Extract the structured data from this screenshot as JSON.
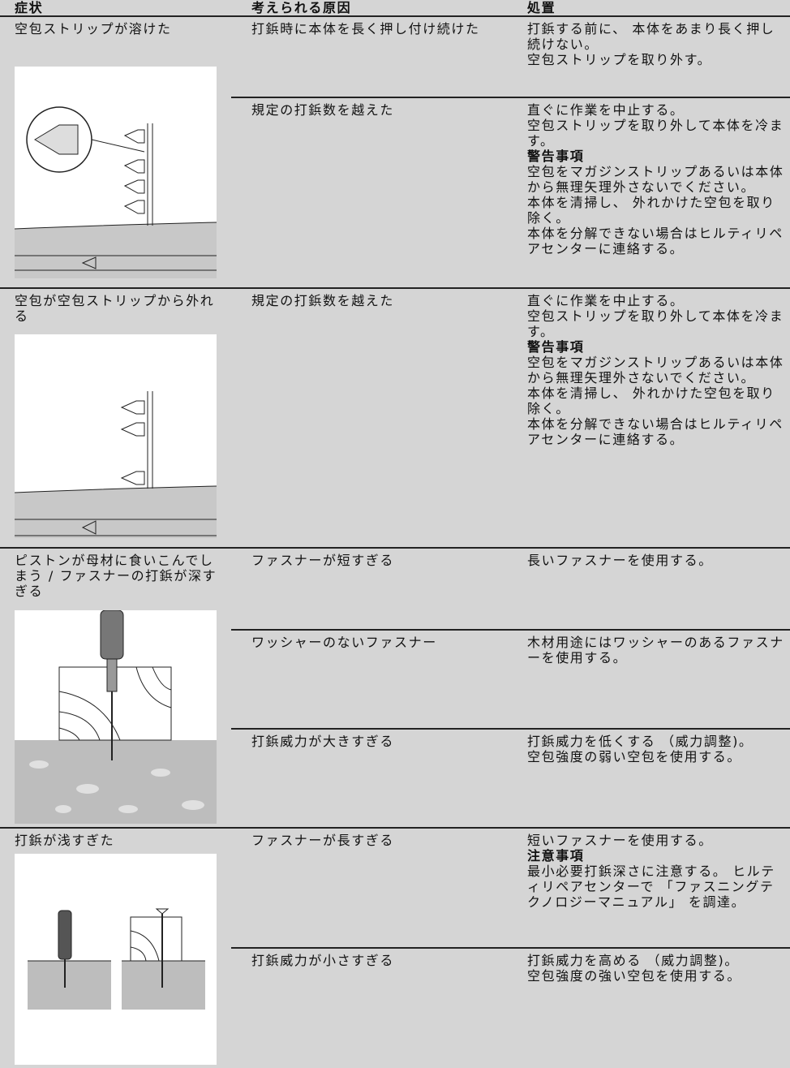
{
  "header": {
    "symptom": "症状",
    "cause": "考えられる原因",
    "remedy": "処置"
  },
  "rows": [
    {
      "symptom": "空包ストリップが溶けた",
      "causes": [
        {
          "cause": "打鋲時に本体を長く押し付け続けた",
          "remedy": [
            "打鋲する前に、 本体をあまり長く押し続けない。",
            "空包ストリップを取り外す。"
          ]
        },
        {
          "cause": "規定の打鋲数を越えた",
          "remedy": [
            "直ぐに作業を中止する。",
            "空包ストリップを取り外して本体を冷ます。",
            {
              "heading": "警告事項"
            },
            "空包をマガジンストリップあるいは本体から無理矢理外さないでください。",
            "本体を清掃し、 外れかけた空包を取り除く。",
            "本体を分解できない場合はヒルティリペアセンターに連絡する。"
          ]
        }
      ]
    },
    {
      "symptom": "空包が空包ストリップから外れる",
      "causes": [
        {
          "cause": "規定の打鋲数を越えた",
          "remedy": [
            "直ぐに作業を中止する。",
            "空包ストリップを取り外して本体を冷ます。",
            {
              "heading": "警告事項"
            },
            "空包をマガジンストリップあるいは本体から無理矢理外さないでください。",
            "本体を清掃し、 外れかけた空包を取り除く。",
            "本体を分解できない場合はヒルティリペアセンターに連絡する。"
          ]
        }
      ]
    },
    {
      "symptom": "ピストンが母材に食いこんでしまう / ファスナーの打鋲が深すぎる",
      "causes": [
        {
          "cause": "ファスナーが短すぎる",
          "remedy": [
            "長いファスナーを使用する。"
          ]
        },
        {
          "cause": "ワッシャーのないファスナー",
          "remedy": [
            "木材用途にはワッシャーのあるファスナーを使用する。"
          ]
        },
        {
          "cause": "打鋲威力が大きすぎる",
          "remedy": [
            "打鋲威力を低くする （威力調整)。",
            "空包強度の弱い空包を使用する。"
          ]
        }
      ]
    },
    {
      "symptom": "打鋲が浅すぎた",
      "causes": [
        {
          "cause": "ファスナーが長すぎる",
          "remedy": [
            "短いファスナーを使用する。",
            {
              "heading": "注意事項"
            },
            "最小必要打鋲深さに注意する。 ヒルティリペアセンターで 「ファスニングテクノロジーマニュアル」 を調達。"
          ]
        },
        {
          "cause": "打鋲威力が小さすぎる",
          "remedy": [
            "打鋲威力を高める （威力調整)。",
            "空包強度の強い空包を使用する。"
          ]
        }
      ]
    }
  ]
}
